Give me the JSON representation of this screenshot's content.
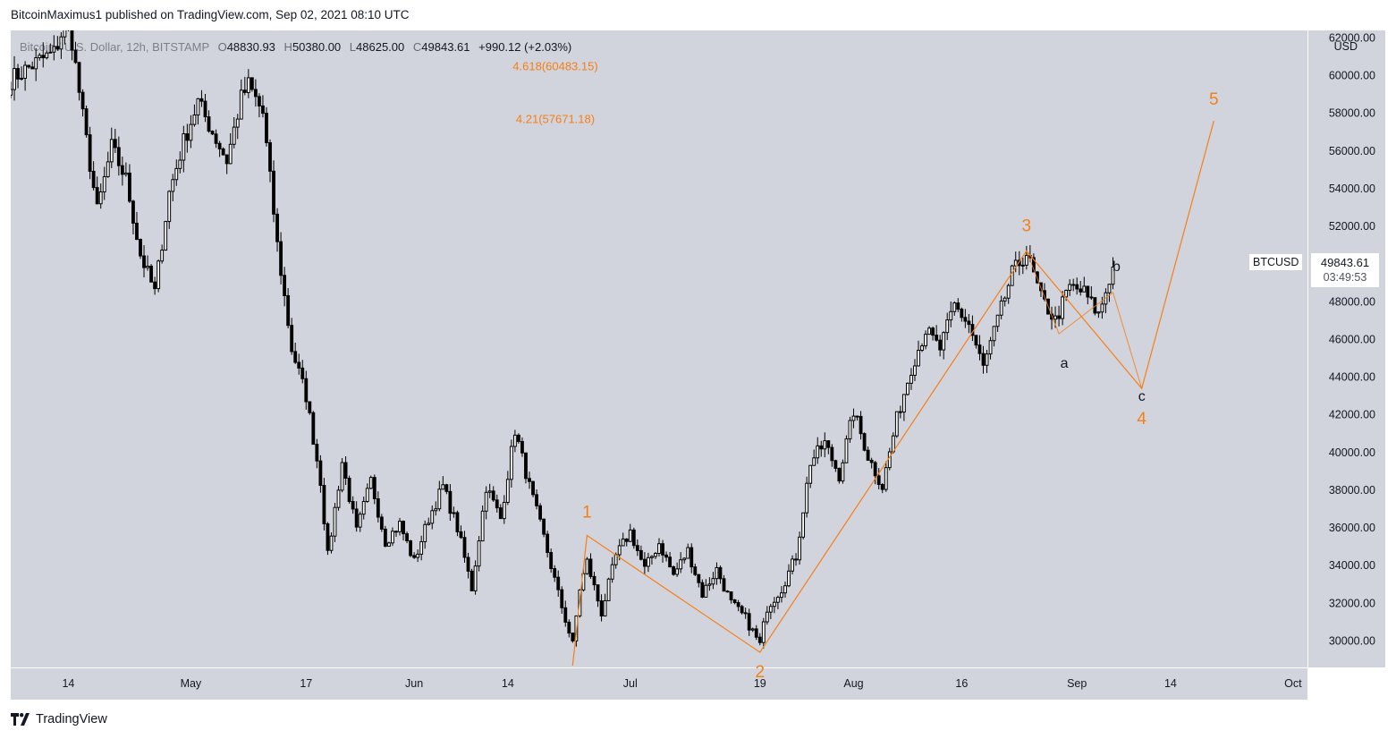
{
  "header": {
    "publisher": "BitcoinMaximus1 published on TradingView.com, Sep 02, 2021 08:10 UTC"
  },
  "legend": {
    "symbol": "Bitcoin / U.S. Dollar, 12h, BITSTAMP",
    "open_key": "O",
    "open": "48830.93",
    "high_key": "H",
    "high": "50380.00",
    "low_key": "L",
    "low": "48625.00",
    "close_key": "C",
    "close": "49843.61",
    "change": "+990.12 (+2.03%)"
  },
  "price_scale": {
    "currency": "USD",
    "ticks": [
      "62000.00",
      "60000.00",
      "58000.00",
      "56000.00",
      "54000.00",
      "52000.00",
      "50000.00",
      "48000.00",
      "46000.00",
      "44000.00",
      "42000.00",
      "40000.00",
      "38000.00",
      "36000.00",
      "34000.00",
      "32000.00",
      "30000.00"
    ]
  },
  "last_price": {
    "symbol": "BTCUSD",
    "price": "49843.61",
    "countdown": "03:49:53"
  },
  "footer": {
    "brand": "TradingView"
  },
  "colors": {
    "background": "#d1d4dc",
    "candle": "#000000",
    "wave": "#f57f17",
    "subwave": "#131722"
  },
  "chart_data": {
    "type": "candlestick",
    "interval": "12h",
    "exchange": "BITSTAMP",
    "ylim": [
      28600,
      62400
    ],
    "xlim": [
      -4,
      176
    ],
    "x_unit": "days from Apr 10, 2021",
    "x_ticks": [
      {
        "label": "14",
        "x": 4
      },
      {
        "label": "May",
        "x": 21
      },
      {
        "label": "17",
        "x": 37
      },
      {
        "label": "Jun",
        "x": 52
      },
      {
        "label": "14",
        "x": 65
      },
      {
        "label": "Jul",
        "x": 82
      },
      {
        "label": "19",
        "x": 100
      },
      {
        "label": "Aug",
        "x": 113
      },
      {
        "label": "16",
        "x": 128
      },
      {
        "label": "Sep",
        "x": 144
      },
      {
        "label": "14",
        "x": 157
      },
      {
        "label": "Oct",
        "x": 174
      }
    ],
    "key_points": [
      [
        -4,
        59800
      ],
      [
        0,
        60800
      ],
      [
        2,
        61200
      ],
      [
        4,
        63200
      ],
      [
        6,
        57800
      ],
      [
        8,
        52800
      ],
      [
        10,
        56200
      ],
      [
        12,
        54500
      ],
      [
        14,
        50500
      ],
      [
        16,
        48500
      ],
      [
        18,
        53800
      ],
      [
        20,
        56500
      ],
      [
        22,
        58600
      ],
      [
        24,
        57000
      ],
      [
        26,
        55500
      ],
      [
        28,
        58800
      ],
      [
        29,
        59500
      ],
      [
        31,
        58000
      ],
      [
        33,
        51000
      ],
      [
        35,
        45500
      ],
      [
        37,
        43000
      ],
      [
        39,
        38500
      ],
      [
        40,
        34500
      ],
      [
        42,
        39500
      ],
      [
        44,
        35800
      ],
      [
        46,
        38500
      ],
      [
        48,
        35300
      ],
      [
        50,
        36200
      ],
      [
        52,
        34200
      ],
      [
        54,
        36500
      ],
      [
        56,
        38200
      ],
      [
        58,
        36000
      ],
      [
        60,
        32800
      ],
      [
        62,
        38200
      ],
      [
        64,
        36500
      ],
      [
        66,
        41200
      ],
      [
        68,
        38200
      ],
      [
        70,
        35500
      ],
      [
        72,
        32500
      ],
      [
        74,
        29800
      ],
      [
        75,
        32800
      ],
      [
        76,
        34200
      ],
      [
        78,
        31500
      ],
      [
        80,
        34500
      ],
      [
        82,
        35800
      ],
      [
        84,
        33800
      ],
      [
        86,
        35200
      ],
      [
        88,
        33500
      ],
      [
        90,
        34800
      ],
      [
        92,
        32500
      ],
      [
        94,
        33800
      ],
      [
        96,
        32000
      ],
      [
        98,
        31200
      ],
      [
        100,
        29800
      ],
      [
        101,
        31800
      ],
      [
        103,
        32800
      ],
      [
        105,
        34500
      ],
      [
        107,
        39500
      ],
      [
        109,
        40500
      ],
      [
        111,
        38800
      ],
      [
        113,
        42200
      ],
      [
        115,
        39800
      ],
      [
        117,
        38200
      ],
      [
        119,
        41800
      ],
      [
        121,
        44500
      ],
      [
        123,
        46500
      ],
      [
        125,
        45500
      ],
      [
        127,
        47800
      ],
      [
        129,
        46800
      ],
      [
        131,
        44500
      ],
      [
        133,
        47000
      ],
      [
        135,
        49500
      ],
      [
        137,
        50600
      ],
      [
        139,
        48200
      ],
      [
        141,
        47000
      ],
      [
        143,
        48800
      ],
      [
        145,
        48500
      ],
      [
        147,
        47300
      ],
      [
        149,
        49843.61
      ]
    ],
    "elliott_waves": {
      "main": {
        "points": [
          {
            "label": "1",
            "x": 76,
            "y": 35600
          },
          {
            "label": "2",
            "x": 100,
            "y": 29400
          },
          {
            "label": "3",
            "x": 137,
            "y": 50700
          },
          {
            "label": "4",
            "x": 153,
            "y": 43400
          },
          {
            "label": "5",
            "x": 163,
            "y": 57600
          }
        ],
        "start": {
          "x": 74,
          "y": 28700
        }
      },
      "correction": [
        {
          "label": "a",
          "x": 141.5,
          "y": 46300
        },
        {
          "label": "b",
          "x": 149,
          "y": 48500
        },
        {
          "label": "c",
          "x": 153,
          "y": 43400
        }
      ]
    },
    "fib_levels": [
      {
        "label": "4.618(60483.15)",
        "price": 60483.15
      },
      {
        "label": "4.21(57671.18)",
        "price": 57671.18
      }
    ],
    "last_price": 49843.61
  }
}
